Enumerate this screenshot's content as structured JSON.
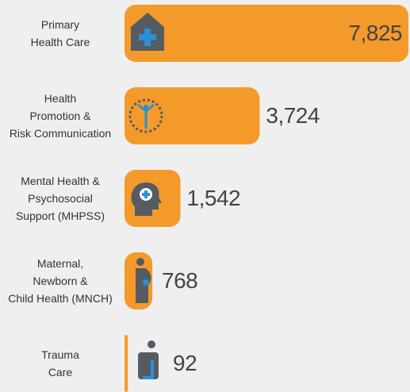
{
  "chart_data": {
    "type": "bar",
    "orientation": "horizontal",
    "color": "#f39a2b",
    "categories": [
      "Primary\nHealth Care",
      "Health\nPromotion &\nRisk Communication",
      "Mental  Health &\nPsychosocial\nSupport (MHPSS)",
      "Maternal,\nNewborn &\nChild Health (MNCH)",
      "Trauma\nCare"
    ],
    "values": [
      7825,
      3724,
      1542,
      768,
      92
    ],
    "value_labels": [
      "7,825",
      "3,724",
      "1,542",
      "768",
      "92"
    ]
  }
}
